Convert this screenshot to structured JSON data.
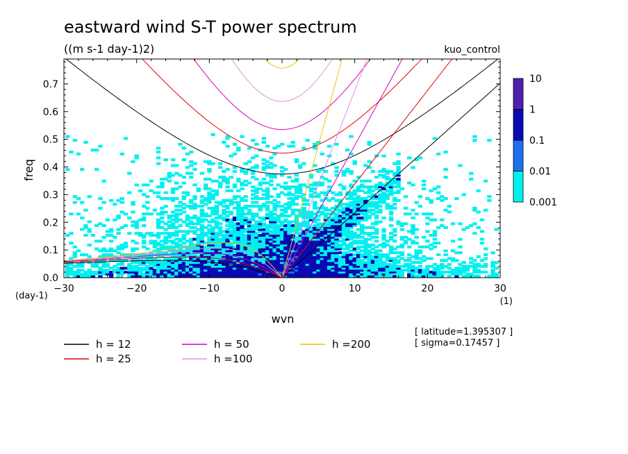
{
  "title": "eastward wind S-T power spectrum",
  "subtitle": "((m s-1 day-1)2)",
  "run_label": "kuo_control",
  "chart_data": {
    "type": "heatmap",
    "title": "eastward wind S-T power spectrum",
    "units": "((m s-1 day-1)2)",
    "xlabel": "wvn",
    "ylabel": "freq",
    "x_unit": "(1)",
    "y_unit": "(day-1)",
    "xlim": [
      -30,
      30
    ],
    "ylim": [
      0,
      0.79
    ],
    "x_ticks": [
      -30,
      -20,
      -10,
      0,
      10,
      20,
      30
    ],
    "y_ticks": [
      0.0,
      0.1,
      0.2,
      0.3,
      0.4,
      0.5,
      0.6,
      0.7
    ],
    "colorbar": {
      "levels": [
        "10",
        "1",
        "0.1",
        "0.01",
        "0.001"
      ],
      "colors": [
        "#5020b0",
        "#0a0ab4",
        "#1e6ef0",
        "#00f0f0"
      ]
    },
    "series": [
      {
        "name": "h = 12",
        "color": "#000000",
        "h": 12
      },
      {
        "name": "h = 25",
        "color": "#e00000",
        "h": 25
      },
      {
        "name": "h = 50",
        "color": "#d000c0",
        "h": 50
      },
      {
        "name": "h =100",
        "color": "#e090e0",
        "h": 100
      },
      {
        "name": "h =200",
        "color": "#f0c000",
        "h": 200
      }
    ],
    "annotations": [
      "[ latitude=1.395307 ]",
      "[ sigma=0.17457 ]"
    ]
  }
}
